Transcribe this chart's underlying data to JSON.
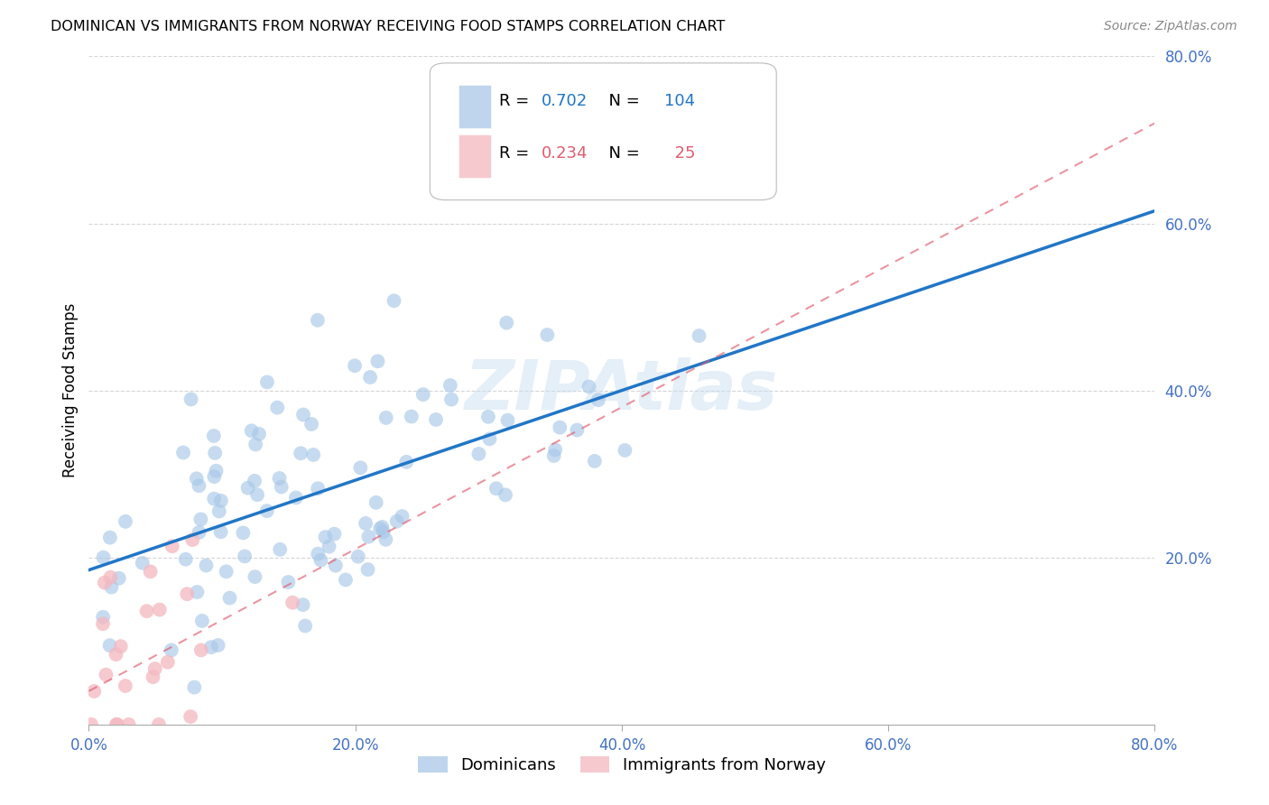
{
  "title": "DOMINICAN VS IMMIGRANTS FROM NORWAY RECEIVING FOOD STAMPS CORRELATION CHART",
  "source": "Source: ZipAtlas.com",
  "ylabel": "Receiving Food Stamps",
  "xlim": [
    0.0,
    0.8
  ],
  "ylim": [
    0.0,
    0.8
  ],
  "xticks": [
    0.0,
    0.2,
    0.4,
    0.6,
    0.8
  ],
  "yticks": [
    0.2,
    0.4,
    0.6,
    0.8
  ],
  "xticklabels": [
    "0.0%",
    "20.0%",
    "40.0%",
    "60.0%",
    "80.0%"
  ],
  "yticklabels": [
    "20.0%",
    "40.0%",
    "60.0%",
    "80.0%"
  ],
  "blue_color": "#a8c8e8",
  "pink_color": "#f4b8c0",
  "blue_line_color": "#2176c7",
  "pink_line_color": "#e05c6e",
  "axis_label_color": "#4472c4",
  "watermark": "ZIPAtlas",
  "legend_R1": "0.702",
  "legend_N1": "104",
  "legend_R2": "0.234",
  "legend_N2": "25",
  "blue_line_x0": 0.0,
  "blue_line_x1": 0.8,
  "blue_line_y0": 0.185,
  "blue_line_y1": 0.615,
  "pink_line_x0": 0.0,
  "pink_line_x1": 0.8,
  "pink_line_y0": 0.04,
  "pink_line_y1": 0.72
}
